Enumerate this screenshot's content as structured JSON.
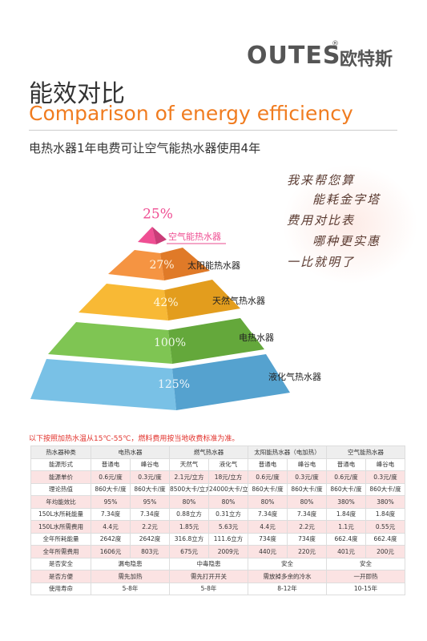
{
  "brand": {
    "name": "OUTES",
    "mark": "®",
    "name_cn": "欧特斯"
  },
  "header": {
    "title": "能效对比",
    "subtitle": "Comparison of energy efficiency",
    "tagline": "电热水器1年电费可让空气能热水器使用4年"
  },
  "pyramid": {
    "levels": [
      {
        "percent": "25%",
        "label": "空气能热水器"
      },
      {
        "percent": "27%",
        "label": "太阳能热水器"
      },
      {
        "percent": "42%",
        "label": "天然气热水器"
      },
      {
        "percent": "100%",
        "label": "电热水器"
      },
      {
        "percent": "125%",
        "label": "液化气热水器"
      }
    ]
  },
  "bubble": {
    "lines": [
      "我来帮您算",
      "能耗金字塔",
      "费用对比表",
      "哪种更实惠",
      "一比就明了"
    ]
  },
  "note": "以下按照加热水温从15℃-55℃，燃料费用按当地收费标准为准。",
  "table": {
    "header": [
      "热水器种类",
      "电热水器",
      "燃气热水器",
      "太阳能热水器（电加热）",
      "空气能热水器"
    ],
    "rows": [
      {
        "label": "能源形式",
        "cells": [
          "普通电",
          "峰谷电",
          "天然气",
          "液化气",
          "普通电",
          "峰谷电",
          "普通电",
          "峰谷电"
        ]
      },
      {
        "label": "能源单价",
        "cells": [
          "0.6元/度",
          "0.3元/度",
          "2.1元/立方",
          "18元/立方",
          "0.6元/度",
          "0.3元/度",
          "0.6元/度",
          "0.3元/度"
        ]
      },
      {
        "label": "理论热值",
        "cells": [
          "860大卡/度",
          "860大卡/度",
          "8500大卡/立方",
          "24000大卡/立方",
          "860大卡/度",
          "860大卡/度",
          "860大卡/度",
          "860大卡/度"
        ]
      },
      {
        "label": "年均能效比",
        "cells": [
          "95%",
          "95%",
          "80%",
          "80%",
          "80%",
          "80%",
          "380%",
          "380%"
        ]
      },
      {
        "label": "150L水所耗能量",
        "cells": [
          "7.34度",
          "7.34度",
          "0.88立方",
          "0.31立方",
          "7.34度",
          "7.34度",
          "1.84度",
          "1.84度"
        ]
      },
      {
        "label": "150L水所需费用",
        "cells": [
          "4.4元",
          "2.2元",
          "1.85元",
          "5.63元",
          "4.4元",
          "2.2元",
          "1.1元",
          "0.55元"
        ]
      },
      {
        "label": "全年所耗能量",
        "cells": [
          "2642度",
          "2642度",
          "316.8立方",
          "111.6立方",
          "734度",
          "734度",
          "662.4度",
          "662.4度"
        ]
      },
      {
        "label": "全年所需费用",
        "cells": [
          "1606元",
          "803元",
          "675元",
          "2009元",
          "440元",
          "220元",
          "401元",
          "200元"
        ]
      },
      {
        "label": "是否安全",
        "cells": [
          "漏电隐患",
          "中毒隐患",
          "安全",
          "安全"
        ]
      },
      {
        "label": "是否方便",
        "cells": [
          "需先加热",
          "需先打开开关",
          "需放掉多余的冷水",
          "一开即热"
        ]
      },
      {
        "label": "使用寿命",
        "cells": [
          "5-8年",
          "5-8年",
          "8-12年",
          "10-15年"
        ]
      }
    ]
  }
}
